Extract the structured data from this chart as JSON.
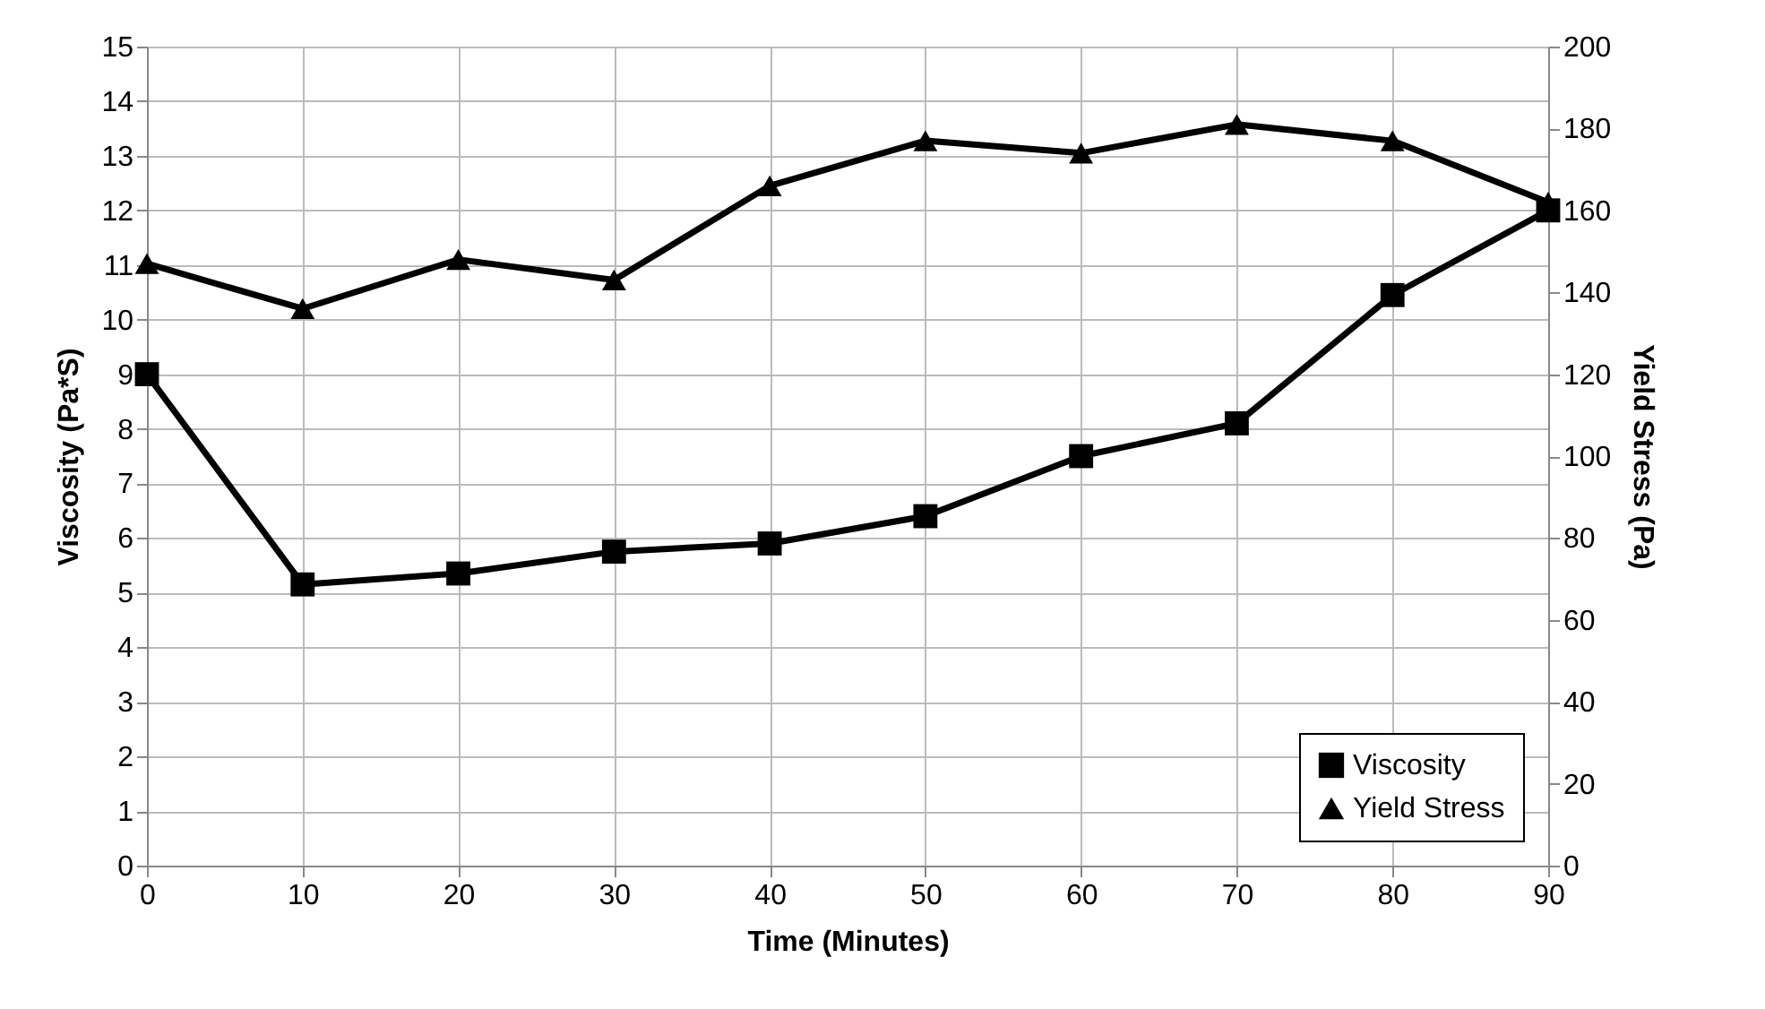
{
  "chart_data": {
    "type": "line",
    "xlabel": "Time (Minutes)",
    "ylabel": "Viscosity (Pa*S)",
    "y2label": "Yield Stress (Pa)",
    "x": [
      0,
      10,
      20,
      30,
      40,
      50,
      60,
      70,
      80,
      90
    ],
    "xlim": [
      0,
      90
    ],
    "xticks": [
      0,
      10,
      20,
      30,
      40,
      50,
      60,
      70,
      80,
      90
    ],
    "ylim": [
      0,
      15
    ],
    "yticks": [
      0,
      1,
      2,
      3,
      4,
      5,
      6,
      7,
      8,
      9,
      10,
      11,
      12,
      13,
      14,
      15
    ],
    "y2lim": [
      0,
      200
    ],
    "y2ticks": [
      0,
      20,
      40,
      60,
      80,
      100,
      120,
      140,
      160,
      180,
      200
    ],
    "grid": true,
    "legend": "bottom right",
    "line_style": "solid",
    "series": [
      {
        "name": "Viscosity",
        "color": "#000000",
        "marker": "square",
        "values": [
          9.0,
          5.15,
          5.35,
          5.75,
          5.9,
          6.4,
          7.5,
          8.1,
          10.45,
          12.0
        ]
      },
      {
        "name": "Yield Stress",
        "color": "#000000",
        "marker": "triangle",
        "axis": "y2",
        "values": [
          147,
          136,
          148,
          143,
          166,
          177,
          174,
          181,
          177,
          162
        ]
      }
    ]
  }
}
